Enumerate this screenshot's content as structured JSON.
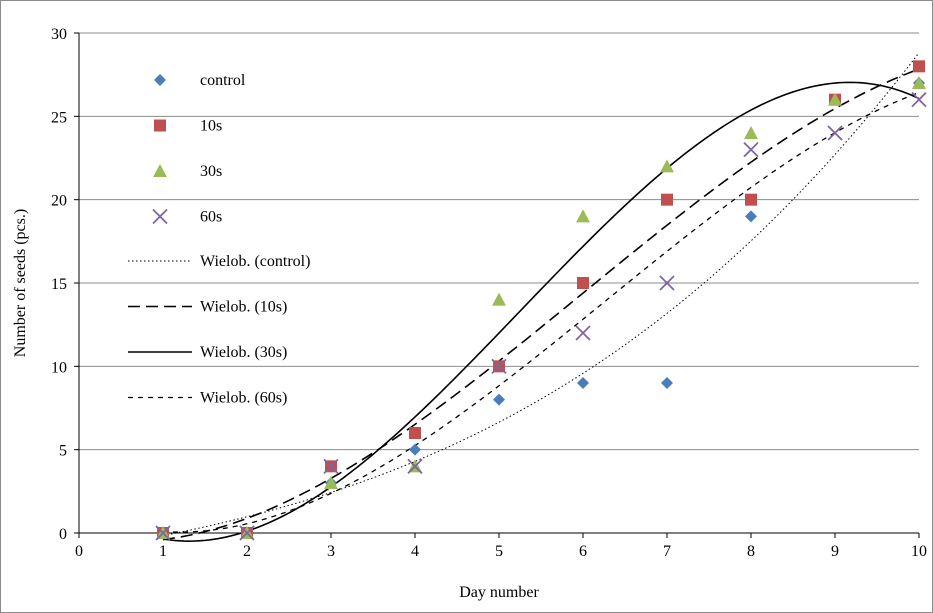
{
  "chart_data": {
    "type": "scatter",
    "xlabel": "Day number",
    "ylabel": "Number of seeds (pcs.)",
    "xlim": [
      0,
      10
    ],
    "ylim": [
      0,
      30
    ],
    "x_ticks": [
      0,
      1,
      2,
      3,
      4,
      5,
      6,
      7,
      8,
      9,
      10
    ],
    "y_ticks": [
      0,
      5,
      10,
      15,
      20,
      25,
      30
    ],
    "grid": "horizontal",
    "legend_position": "top-left inside",
    "x": [
      1,
      2,
      3,
      4,
      5,
      6,
      7,
      8,
      9,
      10
    ],
    "series": [
      {
        "name": "control",
        "marker": "diamond",
        "color": "#4a7ebb",
        "values": [
          0,
          0,
          3,
          5,
          8,
          9,
          9,
          19,
          26,
          27
        ]
      },
      {
        "name": "10s",
        "marker": "square",
        "color": "#c0504d",
        "values": [
          0,
          0,
          4,
          6,
          10,
          15,
          20,
          20,
          26,
          28
        ]
      },
      {
        "name": "30s",
        "marker": "triangle",
        "color": "#9bbb59",
        "values": [
          0,
          0,
          3,
          4,
          14,
          19,
          22,
          24,
          26,
          27
        ]
      },
      {
        "name": "60s",
        "marker": "x",
        "color": "#8064a2",
        "values": [
          0,
          0,
          4,
          4,
          10,
          12,
          15,
          23,
          24,
          26
        ]
      }
    ],
    "trendlines": [
      {
        "name": "Wielob. (control)",
        "style": "dotted",
        "of": "control"
      },
      {
        "name": "Wielob. (10s)",
        "style": "long-dash",
        "of": "10s"
      },
      {
        "name": "Wielob. (30s)",
        "style": "solid",
        "of": "30s"
      },
      {
        "name": "Wielob. (60s)",
        "style": "short-dash",
        "of": "60s"
      }
    ]
  }
}
